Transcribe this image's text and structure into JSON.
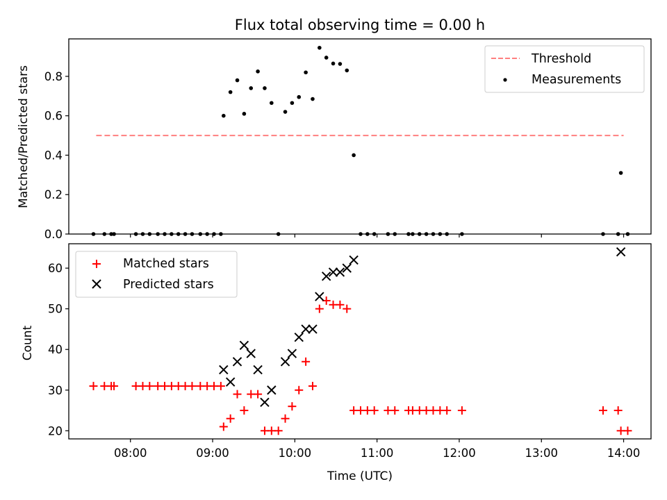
{
  "chart_data": [
    {
      "type": "scatter",
      "title": "Flux total observing time = 0.00 h",
      "ylabel": "Matched/Predicted stars",
      "ylim": [
        0,
        0.99
      ],
      "yticks": [
        0.0,
        0.2,
        0.4,
        0.6,
        0.8
      ],
      "ytick_labels": [
        "0.0",
        "0.2",
        "0.4",
        "0.6",
        "0.8"
      ],
      "legend_position": "upper right",
      "threshold": {
        "name": "Threshold",
        "value": 0.5,
        "x_range": [
          "07:35",
          "14:00"
        ],
        "color": "#ff7f7f",
        "style": "dashed"
      },
      "series": [
        {
          "name": "Measurements",
          "color": "#000000",
          "marker": "dot",
          "points": [
            [
              "07:33",
              0
            ],
            [
              "07:41",
              0
            ],
            [
              "07:46",
              0
            ],
            [
              "07:48",
              0
            ],
            [
              "08:04",
              0
            ],
            [
              "08:09",
              0
            ],
            [
              "08:14",
              0
            ],
            [
              "08:20",
              0
            ],
            [
              "08:25",
              0
            ],
            [
              "08:30",
              0
            ],
            [
              "08:35",
              0
            ],
            [
              "08:40",
              0
            ],
            [
              "08:45",
              0
            ],
            [
              "08:51",
              0
            ],
            [
              "08:56",
              0
            ],
            [
              "09:01",
              0
            ],
            [
              "09:06",
              0
            ],
            [
              "09:08",
              0.6
            ],
            [
              "09:13",
              0.72
            ],
            [
              "09:18",
              0.78
            ],
            [
              "09:23",
              0.61
            ],
            [
              "09:28",
              0.74
            ],
            [
              "09:33",
              0.825
            ],
            [
              "09:38",
              0.74
            ],
            [
              "09:43",
              0.665
            ],
            [
              "09:48",
              0.0
            ],
            [
              "09:53",
              0.62
            ],
            [
              "09:58",
              0.665
            ],
            [
              "10:03",
              0.695
            ],
            [
              "10:08",
              0.82
            ],
            [
              "10:13",
              0.685
            ],
            [
              "10:18",
              0.945
            ],
            [
              "10:23",
              0.895
            ],
            [
              "10:28",
              0.865
            ],
            [
              "10:33",
              0.863
            ],
            [
              "10:38",
              0.83
            ],
            [
              "10:43",
              0.4
            ],
            [
              "10:48",
              0
            ],
            [
              "10:53",
              0
            ],
            [
              "10:58",
              0
            ],
            [
              "11:08",
              0
            ],
            [
              "11:13",
              0
            ],
            [
              "11:23",
              0
            ],
            [
              "11:26",
              0
            ],
            [
              "11:31",
              0
            ],
            [
              "11:36",
              0
            ],
            [
              "11:41",
              0
            ],
            [
              "11:46",
              0
            ],
            [
              "11:51",
              0
            ],
            [
              "12:02",
              0
            ],
            [
              "13:45",
              0
            ],
            [
              "13:56",
              0
            ],
            [
              "13:58",
              0.31
            ],
            [
              "14:03",
              0
            ]
          ]
        }
      ]
    },
    {
      "type": "scatter",
      "xlabel": "Time (UTC)",
      "ylabel": "Count",
      "ylim": [
        18,
        66
      ],
      "yticks": [
        20,
        30,
        40,
        50,
        60
      ],
      "ytick_labels": [
        "20",
        "30",
        "40",
        "50",
        "60"
      ],
      "x_range": [
        "07:15",
        "14:20"
      ],
      "xticks": [
        "08:00",
        "09:00",
        "10:00",
        "11:00",
        "12:00",
        "13:00",
        "14:00"
      ],
      "xtick_labels": [
        "08:00",
        "09:00",
        "10:00",
        "11:00",
        "12:00",
        "13:00",
        "14:00"
      ],
      "legend_position": "upper left",
      "series": [
        {
          "name": "Matched stars",
          "color": "#ff0000",
          "marker": "plus",
          "points": [
            [
              "07:33",
              31
            ],
            [
              "07:41",
              31
            ],
            [
              "07:46",
              31
            ],
            [
              "07:48",
              31
            ],
            [
              "08:04",
              31
            ],
            [
              "08:09",
              31
            ],
            [
              "08:14",
              31
            ],
            [
              "08:20",
              31
            ],
            [
              "08:25",
              31
            ],
            [
              "08:30",
              31
            ],
            [
              "08:35",
              31
            ],
            [
              "08:40",
              31
            ],
            [
              "08:45",
              31
            ],
            [
              "08:51",
              31
            ],
            [
              "08:56",
              31
            ],
            [
              "09:01",
              31
            ],
            [
              "09:06",
              31
            ],
            [
              "09:08",
              21
            ],
            [
              "09:13",
              23
            ],
            [
              "09:18",
              29
            ],
            [
              "09:23",
              25
            ],
            [
              "09:28",
              29
            ],
            [
              "09:33",
              29
            ],
            [
              "09:38",
              20
            ],
            [
              "09:43",
              20
            ],
            [
              "09:48",
              20
            ],
            [
              "09:53",
              23
            ],
            [
              "09:58",
              26
            ],
            [
              "10:03",
              30
            ],
            [
              "10:08",
              37
            ],
            [
              "10:13",
              31
            ],
            [
              "10:18",
              50
            ],
            [
              "10:23",
              52
            ],
            [
              "10:28",
              51
            ],
            [
              "10:33",
              51
            ],
            [
              "10:38",
              50
            ],
            [
              "10:43",
              25
            ],
            [
              "10:48",
              25
            ],
            [
              "10:53",
              25
            ],
            [
              "10:58",
              25
            ],
            [
              "11:08",
              25
            ],
            [
              "11:13",
              25
            ],
            [
              "11:23",
              25
            ],
            [
              "11:26",
              25
            ],
            [
              "11:31",
              25
            ],
            [
              "11:36",
              25
            ],
            [
              "11:41",
              25
            ],
            [
              "11:46",
              25
            ],
            [
              "11:51",
              25
            ],
            [
              "12:02",
              25
            ],
            [
              "13:45",
              25
            ],
            [
              "13:56",
              25
            ],
            [
              "13:58",
              20
            ],
            [
              "14:03",
              20
            ]
          ]
        },
        {
          "name": "Predicted stars",
          "color": "#000000",
          "marker": "x",
          "points": [
            [
              "09:08",
              35
            ],
            [
              "09:13",
              32
            ],
            [
              "09:18",
              37
            ],
            [
              "09:23",
              41
            ],
            [
              "09:28",
              39
            ],
            [
              "09:33",
              35
            ],
            [
              "09:38",
              27
            ],
            [
              "09:43",
              30
            ],
            [
              "09:53",
              37
            ],
            [
              "09:58",
              39
            ],
            [
              "10:03",
              43
            ],
            [
              "10:08",
              45
            ],
            [
              "10:13",
              45
            ],
            [
              "10:18",
              53
            ],
            [
              "10:23",
              58
            ],
            [
              "10:28",
              59
            ],
            [
              "10:33",
              59
            ],
            [
              "10:38",
              60
            ],
            [
              "10:43",
              62
            ],
            [
              "13:58",
              64
            ]
          ]
        }
      ]
    }
  ]
}
